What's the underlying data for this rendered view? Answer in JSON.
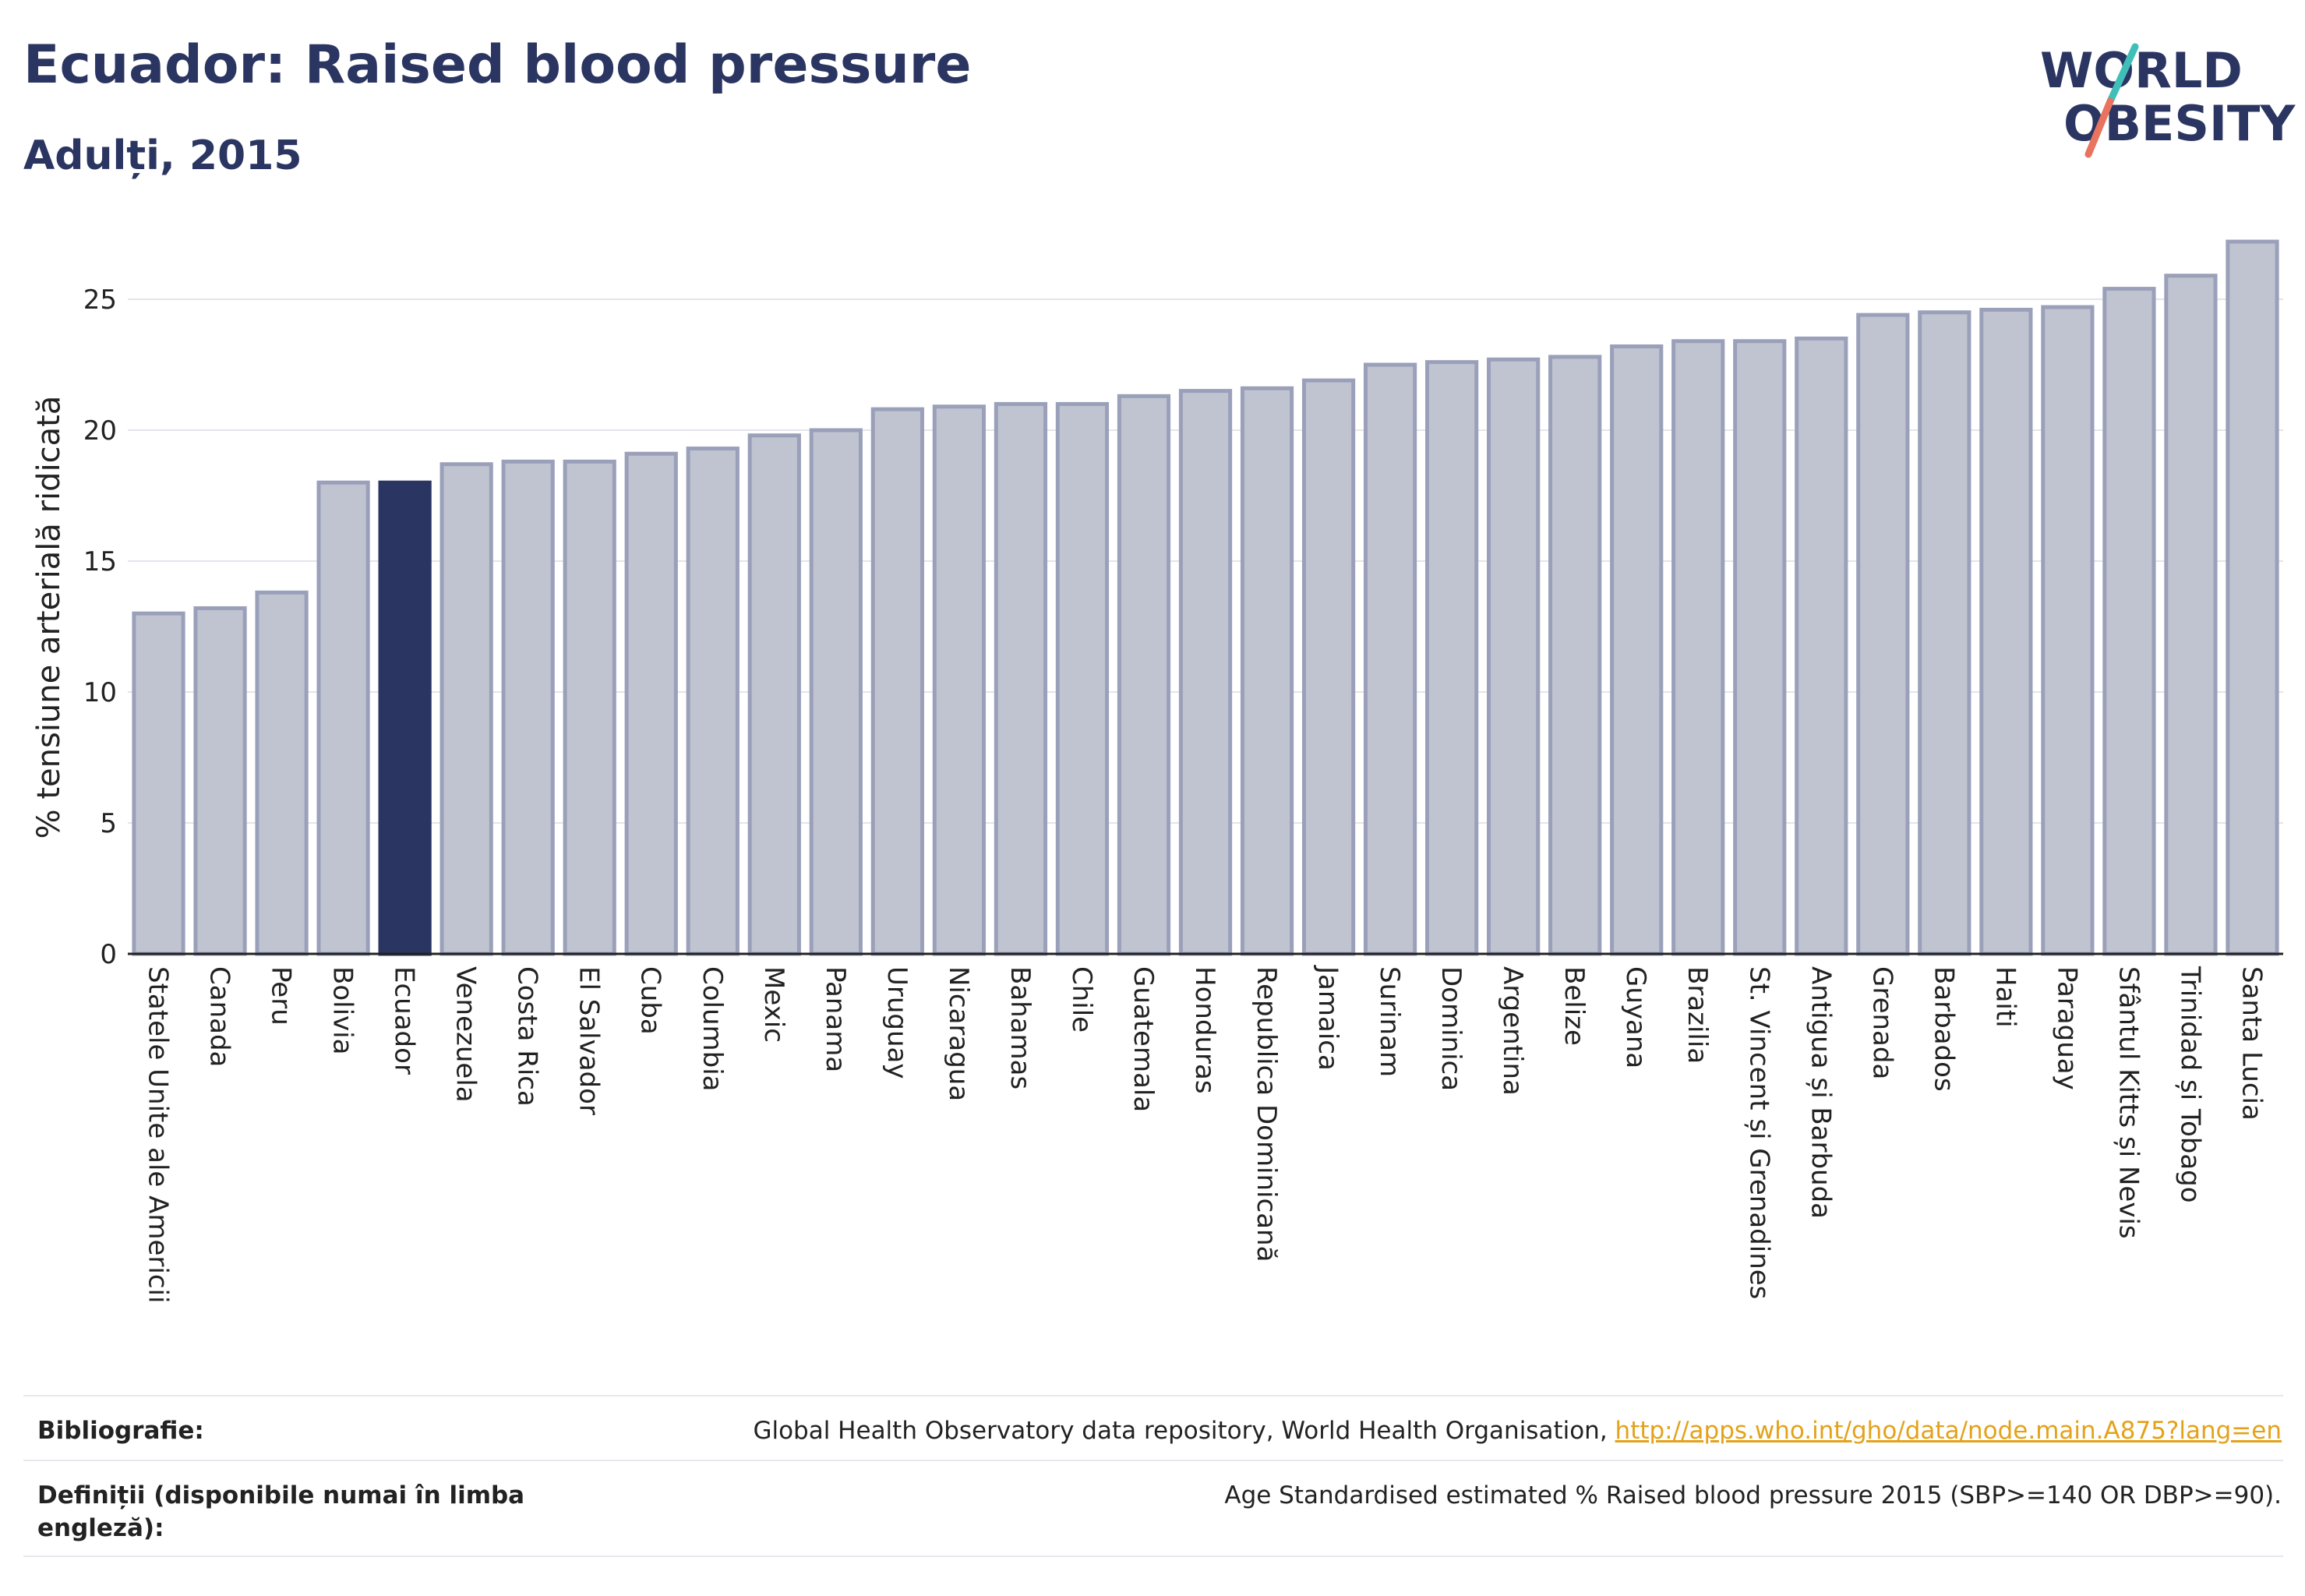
{
  "header": {
    "title": "Ecuador: Raised blood pressure",
    "subtitle": "Adulți, 2015"
  },
  "logo": {
    "line1": "WORLD",
    "line2": "OBESITY",
    "colors": {
      "text": "#2b3561",
      "slash_top": "#3fbfb7",
      "slash_bottom": "#e8735f"
    }
  },
  "colors": {
    "bar": "#c0c4d1",
    "bar_stroke": "#9aa0b9",
    "highlight": "#2b3561",
    "grid": "#e3e5ec"
  },
  "chart_data": {
    "type": "bar",
    "ylabel": "% tensiune arterială ridicată",
    "ylim": [
      0,
      27.5
    ],
    "yticks": [
      0,
      5,
      10,
      15,
      20,
      25
    ],
    "grid": true,
    "highlight": "Ecuador",
    "categories": [
      "Statele Unite ale Americii",
      "Canada",
      "Peru",
      "Bolivia",
      "Ecuador",
      "Venezuela",
      "Costa Rica",
      "El Salvador",
      "Cuba",
      "Columbia",
      "Mexic",
      "Panama",
      "Uruguay",
      "Nicaragua",
      "Bahamas",
      "Chile",
      "Guatemala",
      "Honduras",
      "Republica Dominicană",
      "Jamaica",
      "Surinam",
      "Dominica",
      "Argentina",
      "Belize",
      "Guyana",
      "Brazilia",
      "St. Vincent și Grenadines",
      "Antigua și Barbuda",
      "Grenada",
      "Barbados",
      "Haiti",
      "Paraguay",
      "Sfântul Kitts și Nevis",
      "Trinidad și Tobago",
      "Santa Lucia"
    ],
    "values": [
      13.0,
      13.2,
      13.8,
      18.0,
      18.0,
      18.7,
      18.8,
      18.8,
      19.1,
      19.3,
      19.8,
      20.0,
      20.8,
      20.9,
      21.0,
      21.0,
      21.3,
      21.5,
      21.6,
      21.9,
      22.5,
      22.6,
      22.7,
      22.8,
      23.2,
      23.4,
      23.4,
      23.5,
      24.4,
      24.5,
      24.6,
      24.7,
      25.4,
      25.9,
      27.2
    ]
  },
  "footer": {
    "bibliography_label": "Bibliografie:",
    "bibliography_text": "Global Health Observatory data repository, World Health Organisation, ",
    "bibliography_link": "http://apps.who.int/gho/data/node.main.A875?lang=en",
    "definitions_label": "Definiții (disponibile numai în limba engleză):",
    "definitions_text": "Age Standardised estimated % Raised blood pressure 2015 (SBP>=140 OR DBP>=90)."
  }
}
